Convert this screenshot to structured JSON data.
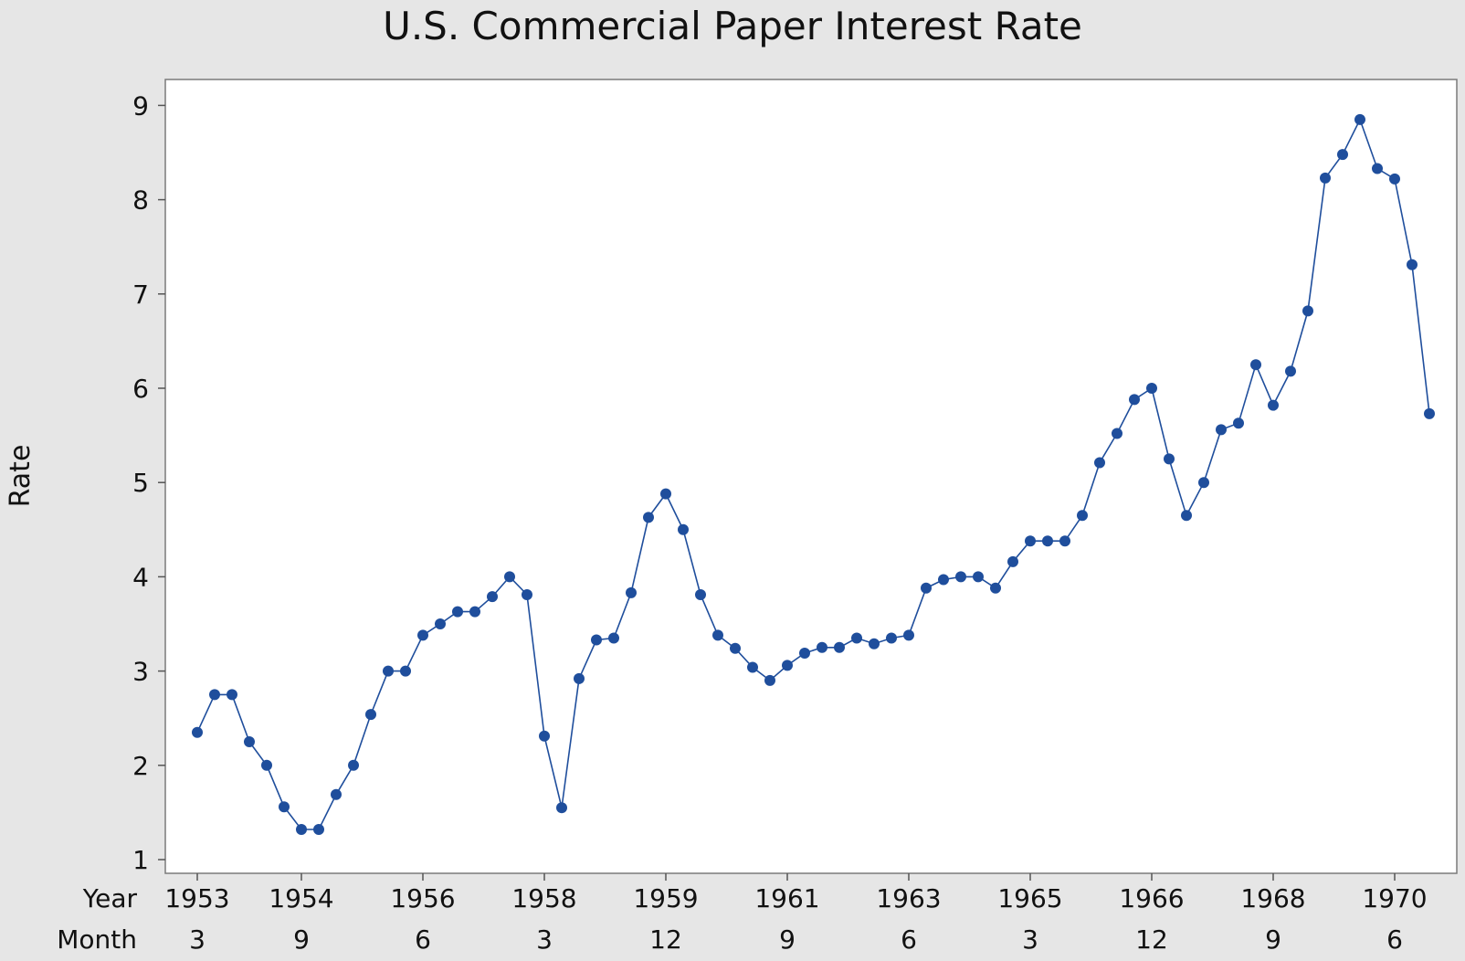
{
  "chart_data": {
    "type": "line",
    "title": "U.S. Commercial Paper Interest Rate",
    "xlabel": "",
    "ylabel": "Rate",
    "ylim": [
      1,
      9
    ],
    "yticks": [
      1,
      2,
      3,
      4,
      5,
      6,
      7,
      8,
      9
    ],
    "x_axis_rows": [
      {
        "label": "Year",
        "ticks": [
          "1953",
          "1954",
          "1956",
          "1958",
          "1959",
          "1961",
          "1963",
          "1965",
          "1966",
          "1968",
          "1970"
        ]
      },
      {
        "label": "Month",
        "ticks": [
          "3",
          "9",
          "6",
          "3",
          "12",
          "9",
          "6",
          "3",
          "12",
          "9",
          "6"
        ]
      }
    ],
    "tick_indices": [
      0,
      6,
      13,
      20,
      27,
      34,
      41,
      48,
      55,
      62,
      69
    ],
    "grid": false,
    "series": [
      {
        "color": "#1f4e9c",
        "marker": "circle",
        "values": [
          2.35,
          2.75,
          2.75,
          2.25,
          2.0,
          1.56,
          1.32,
          1.32,
          1.69,
          2.0,
          2.54,
          3.0,
          3.0,
          3.38,
          3.5,
          3.63,
          3.63,
          3.79,
          4.0,
          3.81,
          2.31,
          1.55,
          2.92,
          3.33,
          3.35,
          3.83,
          4.63,
          4.88,
          4.5,
          3.81,
          3.38,
          3.24,
          3.04,
          2.9,
          3.06,
          3.19,
          3.25,
          3.25,
          3.35,
          3.29,
          3.35,
          3.38,
          3.88,
          3.97,
          4.0,
          4.0,
          3.88,
          4.16,
          4.38,
          4.38,
          4.38,
          4.65,
          5.21,
          5.52,
          5.88,
          6.0,
          5.25,
          4.65,
          5.0,
          5.56,
          5.63,
          6.25,
          5.82,
          6.18,
          6.82,
          8.23,
          8.48,
          8.85,
          8.33,
          8.22,
          7.31,
          5.73
        ]
      }
    ]
  }
}
